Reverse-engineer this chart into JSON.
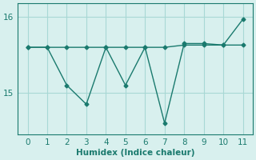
{
  "x": [
    0,
    1,
    2,
    3,
    4,
    5,
    6,
    7,
    8,
    9,
    10,
    11
  ],
  "line1_y": [
    15.6,
    15.6,
    15.6,
    15.6,
    15.6,
    15.6,
    15.6,
    15.6,
    15.63,
    15.63,
    15.63,
    15.63
  ],
  "line2_y": [
    15.6,
    15.6,
    15.1,
    14.85,
    15.6,
    15.1,
    15.6,
    14.6,
    15.65,
    15.65,
    15.63,
    15.97
  ],
  "line_color": "#1a7a6e",
  "bg_color": "#d8f0ee",
  "grid_color": "#a8d8d5",
  "xlabel": "Humidex (Indice chaleur)",
  "ylim_min": 14.45,
  "ylim_max": 16.18,
  "yticks": [
    15,
    16
  ],
  "xticks": [
    0,
    1,
    2,
    3,
    4,
    5,
    6,
    7,
    8,
    9,
    10,
    11
  ],
  "marker_size": 2.5,
  "line_width": 1.0,
  "xlabel_fontsize": 7.5,
  "tick_fontsize": 7.5
}
